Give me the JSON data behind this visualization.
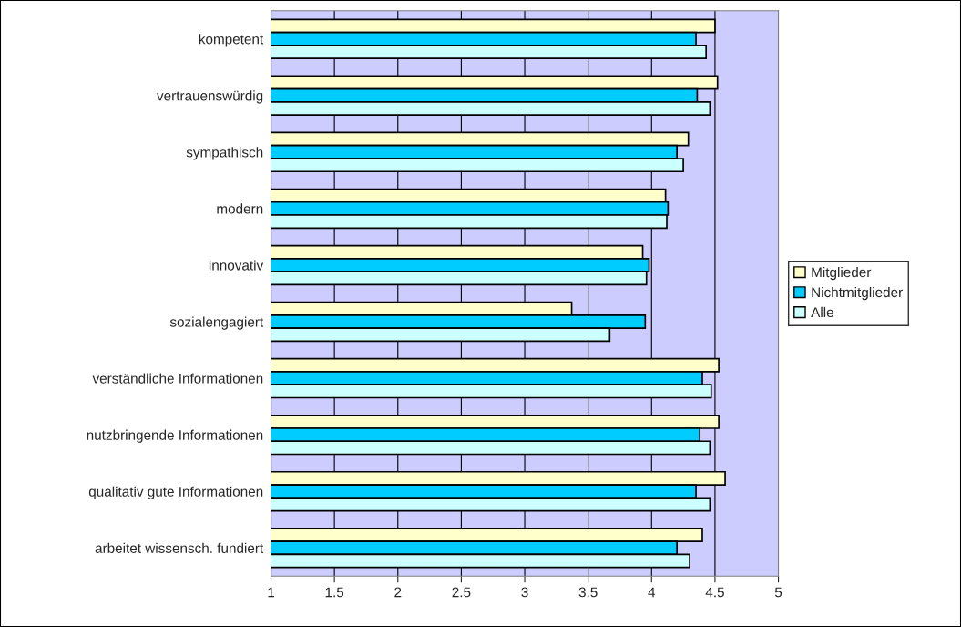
{
  "chart_data": {
    "type": "bar",
    "orientation": "horizontal",
    "categories": [
      "kompetent",
      "vertrauenswürdig",
      "sympathisch",
      "modern",
      "innovativ",
      "sozialengagiert",
      "verständliche Informationen",
      "nutzbringende Informationen",
      "qualitativ gute Informationen",
      "arbeitet wissensch. fundiert"
    ],
    "series": [
      {
        "name": "Mitglieder",
        "color": "#ffffcc",
        "values": [
          4.5,
          4.52,
          4.29,
          4.11,
          3.93,
          3.37,
          4.53,
          4.53,
          4.58,
          4.4
        ]
      },
      {
        "name": "Nichtmitglieder",
        "color": "#00ccff",
        "values": [
          4.35,
          4.36,
          4.2,
          4.13,
          3.98,
          3.95,
          4.4,
          4.38,
          4.35,
          4.2
        ]
      },
      {
        "name": "Alle",
        "color": "#ccffff",
        "values": [
          4.43,
          4.46,
          4.25,
          4.12,
          3.96,
          3.67,
          4.47,
          4.46,
          4.46,
          4.3
        ]
      }
    ],
    "xlim": [
      1,
      5
    ],
    "xticks": [
      1,
      1.5,
      2,
      2.5,
      3,
      3.5,
      4,
      4.5,
      5
    ],
    "grid": "x",
    "legend": "right"
  }
}
